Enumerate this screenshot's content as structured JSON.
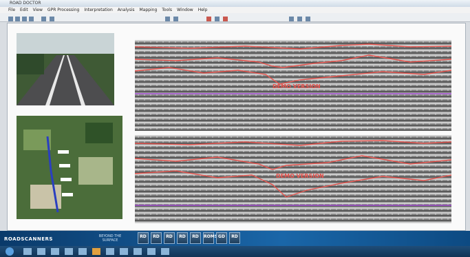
{
  "window": {
    "title": "ROAD DOCTOR",
    "menu": [
      "File",
      "Edit",
      "View",
      "GPR Processing",
      "Interpretation",
      "Analysis",
      "Mapping",
      "Tools",
      "Window",
      "Help"
    ]
  },
  "radargram": {
    "top_label": "DEMO VERSION",
    "bottom_label": "DEMO VERSION"
  },
  "banner": {
    "brand": "ROADSCANNERS",
    "tagline": "BEYOND THE SURFACE",
    "buttons": [
      "RD",
      "RD",
      "RD",
      "RD",
      "RD",
      "ROMS",
      "GD",
      "RD"
    ]
  }
}
